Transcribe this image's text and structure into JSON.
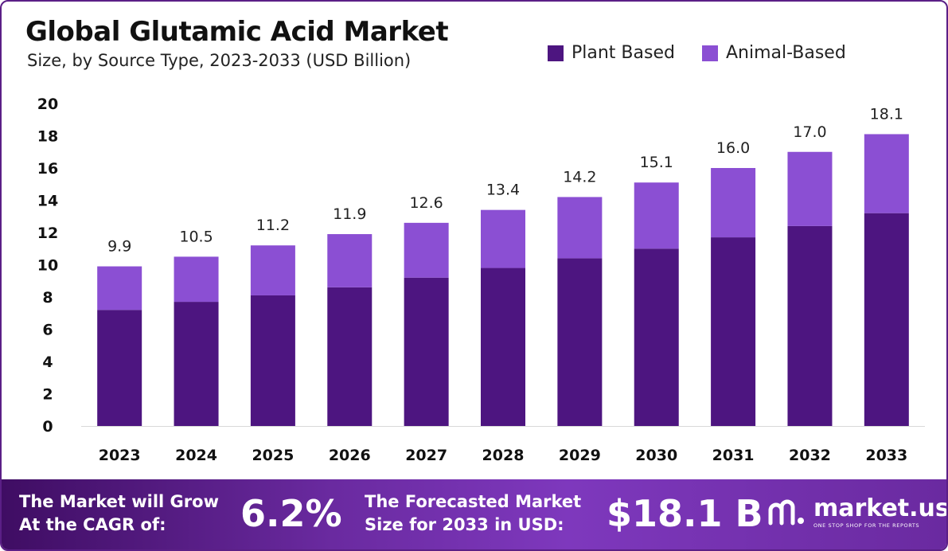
{
  "header": {
    "title": "Global Glutamic Acid Market",
    "subtitle": "Size, by Source Type, 2023-2033 (USD Billion)"
  },
  "colors": {
    "plant_based": "#4d1580",
    "animal_based": "#8b4fd3",
    "footer": "#6a2aa0",
    "frame": "#5b1f86"
  },
  "chart_data": {
    "type": "bar",
    "stacked": true,
    "categories": [
      "2023",
      "2024",
      "2025",
      "2026",
      "2027",
      "2028",
      "2029",
      "2030",
      "2031",
      "2032",
      "2033"
    ],
    "series": [
      {
        "name": "Plant Based",
        "values": [
          7.2,
          7.7,
          8.1,
          8.6,
          9.2,
          9.8,
          10.4,
          11.0,
          11.7,
          12.4,
          13.2
        ]
      },
      {
        "name": "Animal-Based",
        "values": [
          2.7,
          2.8,
          3.1,
          3.3,
          3.4,
          3.6,
          3.8,
          4.1,
          4.3,
          4.6,
          4.9
        ]
      }
    ],
    "totals": [
      "9.9",
      "10.5",
      "11.2",
      "11.9",
      "12.6",
      "13.4",
      "14.2",
      "15.1",
      "16.0",
      "17.0",
      "18.1"
    ],
    "yticks": [
      "0",
      "2",
      "4",
      "6",
      "8",
      "10",
      "12",
      "14",
      "16",
      "18",
      "20"
    ],
    "ylim": [
      0,
      20
    ],
    "legend": "top-right",
    "grid": false
  },
  "footer": {
    "cagr_line1": "The Market will Grow",
    "cagr_line2": "At the CAGR of:",
    "cagr_value": "6.2%",
    "forecast_line1": "The Forecasted Market",
    "forecast_line2": "Size for 2033 in USD:",
    "forecast_value": "$18.1 B",
    "brand_name": "market.us",
    "brand_tagline": "ONE STOP SHOP FOR THE REPORTS"
  }
}
